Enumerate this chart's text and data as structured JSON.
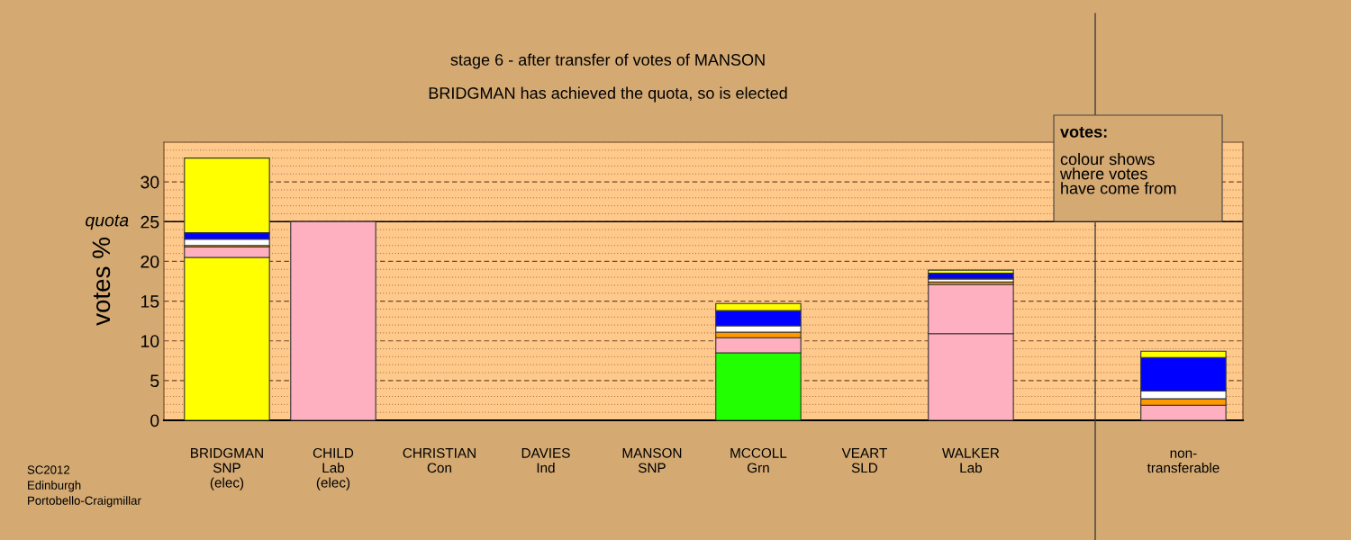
{
  "chart_data": {
    "type": "bar",
    "stacked": true,
    "title": "stage 6 - after transfer of votes of MANSON",
    "subtitle": "BRIDGMAN has achieved the quota, so is elected",
    "ylabel": "votes %",
    "categories": [
      "BRIDGMAN\nSNP\n(elec)",
      "CHILD\nLab\n(elec)",
      "CHRISTIAN\nCon",
      "DAVIES\nInd",
      "MANSON\nSNP",
      "MCCOLL\nGrn",
      "VEART\nSLD",
      "WALKER\nLab",
      null,
      "non-\ntransferable"
    ],
    "series": [
      {
        "colors": [
          "#ffff00",
          "#ffb0c0",
          "#0000ff",
          "#ffffff",
          "#ffff00",
          "#22ff00",
          "#ff9900",
          "#ffb0c0",
          "#ffb0c0",
          "#ffb0c0"
        ],
        "values": [
          20.5,
          25,
          0,
          0,
          0,
          8.5,
          0,
          10.9,
          null,
          0
        ]
      },
      {
        "color": "#ffb0c0",
        "values": [
          1.3,
          0,
          0,
          0,
          0,
          1.9,
          0,
          6.2,
          null,
          1.9
        ]
      },
      {
        "color": "#ff9900",
        "values": [
          0.2,
          0,
          0,
          0,
          0,
          0.7,
          0,
          0.3,
          null,
          0.8
        ]
      },
      {
        "color": "#ffffff",
        "values": [
          0.8,
          0,
          0,
          0,
          0,
          0.8,
          0,
          0.4,
          null,
          1.0
        ]
      },
      {
        "color": "#0000ff",
        "values": [
          0.8,
          0,
          0,
          0,
          0,
          1.9,
          0,
          0.7,
          null,
          4.2
        ]
      },
      {
        "color": "#ffff00",
        "values": [
          9.4,
          0,
          0,
          0,
          0,
          0.9,
          0,
          0.4,
          null,
          0.8
        ]
      }
    ],
    "ylim": [
      0,
      35
    ],
    "yticks": [
      0,
      5,
      10,
      15,
      20,
      25,
      30
    ],
    "ref_lines": [
      {
        "axis": "y",
        "value": 25,
        "label": "quota",
        "color": "#000000"
      }
    ],
    "grid": "y",
    "legend": false,
    "annotations": [
      "votes:",
      "colour shows\nwhere votes\nhave come from",
      "SC2012\nEdinburgh\nPortobello-Craigmillar"
    ]
  }
}
